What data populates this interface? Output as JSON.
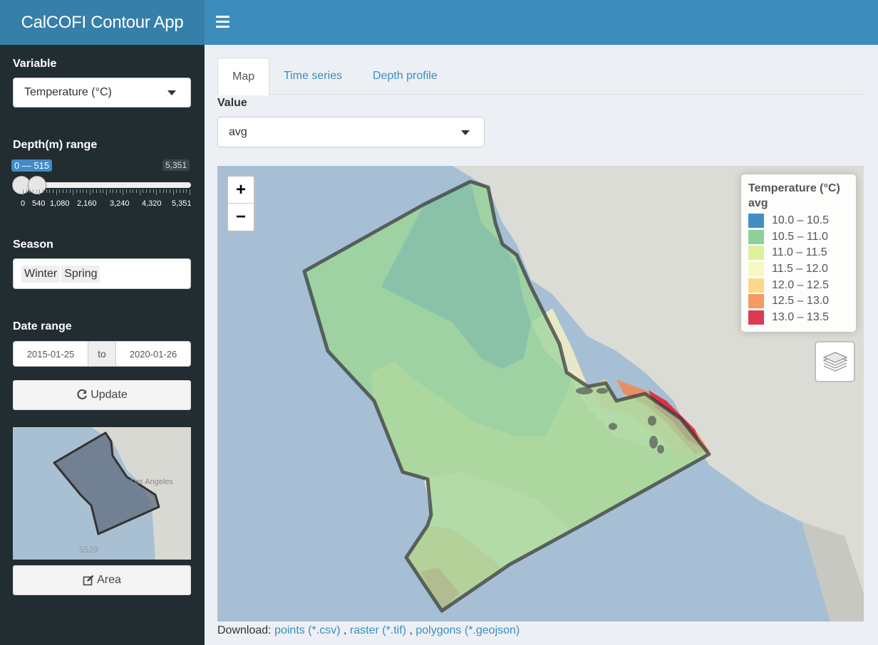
{
  "app": {
    "title": "CalCOFI Contour App"
  },
  "header": {
    "menu_icon": "bars-icon"
  },
  "sidebar": {
    "variable": {
      "label": "Variable",
      "selected": "Temperature (°C)"
    },
    "depth": {
      "label": "Depth(m) range",
      "range_text": "0 — 515",
      "min": 0,
      "max": 5351,
      "from": 0,
      "to": 515,
      "max_text": "5,351",
      "ticks": [
        "0",
        "540",
        "1,080",
        "2,160",
        "3,240",
        "4,320",
        "5,351"
      ]
    },
    "season": {
      "label": "Season",
      "chips": [
        "Winter",
        "Spring"
      ]
    },
    "date_range": {
      "label": "Date range",
      "start": "2015-01-25",
      "sep": "to",
      "end": "2020-01-26"
    },
    "update_button": {
      "label": "Update",
      "icon": "refresh-icon"
    },
    "minimap": {
      "city_label": "Los Angeles",
      "number_label": "5529"
    },
    "area_button": {
      "label": "Area",
      "icon": "edit-icon"
    }
  },
  "tabs": [
    {
      "label": "Map",
      "active": true
    },
    {
      "label": "Time series",
      "active": false
    },
    {
      "label": "Depth profile",
      "active": false
    }
  ],
  "value": {
    "label": "Value",
    "selected": "avg"
  },
  "map": {
    "zoom_in": "+",
    "zoom_out": "−",
    "legend": {
      "title": "Temperature (°C)",
      "subtitle": "avg",
      "items": [
        {
          "label": "10.0 – 10.5",
          "color": "#2b83ba"
        },
        {
          "label": "10.5 – 11.0",
          "color": "#80cc8e"
        },
        {
          "label": "11.0 – 11.5",
          "color": "#dcef8f"
        },
        {
          "label": "11.5 – 12.0",
          "color": "#fbf6bd"
        },
        {
          "label": "12.0 – 12.5",
          "color": "#fdd47f"
        },
        {
          "label": "12.5 – 13.0",
          "color": "#f78e53"
        },
        {
          "label": "13.0 – 13.5",
          "color": "#d7263f"
        }
      ]
    },
    "layers_icon": "layers-icon"
  },
  "download": {
    "prefix": "Download:",
    "links": [
      "points (*.csv)",
      "raster (*.tif)",
      "polygons (*.geojson)"
    ],
    "sep1": ",",
    "sep2": ","
  }
}
